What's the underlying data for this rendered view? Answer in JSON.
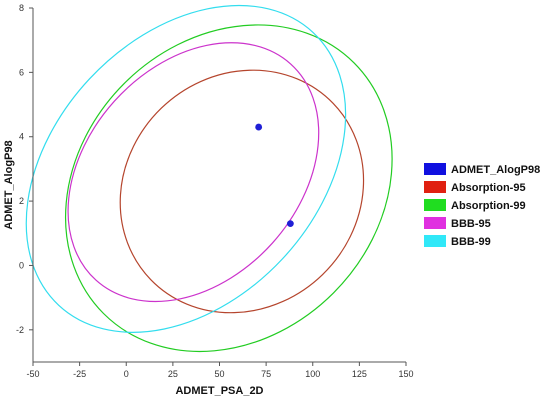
{
  "chart_data": {
    "type": "scatter",
    "xlabel": "ADMET_PSA_2D",
    "ylabel": "ADMET_AlogP98",
    "xlim": [
      -50,
      150
    ],
    "ylim": [
      -3,
      8
    ],
    "x_ticks": [
      -50,
      -25,
      0,
      25,
      50,
      75,
      100,
      125,
      150
    ],
    "y_ticks": [
      -2,
      0,
      2,
      4,
      6,
      8
    ],
    "grid": false,
    "legend_position": "right",
    "points": {
      "name": "ADMET_AlogP98",
      "color": "#1f1fd6",
      "x": [
        71,
        88
      ],
      "y": [
        4.3,
        1.3
      ]
    },
    "ellipses": [
      {
        "name": "Absorption-95",
        "color": "#b5452d",
        "cx": 62,
        "cy": 2.3,
        "rx": 68,
        "ry": 3.6,
        "angle_deg": -44
      },
      {
        "name": "Absorption-99",
        "color": "#22cc22",
        "cx": 55,
        "cy": 2.4,
        "rx": 95,
        "ry": 4.6,
        "angle_deg": -45
      },
      {
        "name": "BBB-95",
        "color": "#cc33cc",
        "cx": 36,
        "cy": 2.9,
        "rx": 78,
        "ry": 3.3,
        "angle_deg": -48
      },
      {
        "name": "BBB-99",
        "color": "#33ddee",
        "cx": 32,
        "cy": 3.0,
        "rx": 100,
        "ry": 4.1,
        "angle_deg": -47
      }
    ]
  },
  "legend": [
    {
      "label": "ADMET_AlogP98",
      "color": "#1010e0"
    },
    {
      "label": "Absorption-95",
      "color": "#e02010"
    },
    {
      "label": "Absorption-99",
      "color": "#20dd20"
    },
    {
      "label": "BBB-95",
      "color": "#e030e0"
    },
    {
      "label": "BBB-99",
      "color": "#30e8f8"
    }
  ]
}
